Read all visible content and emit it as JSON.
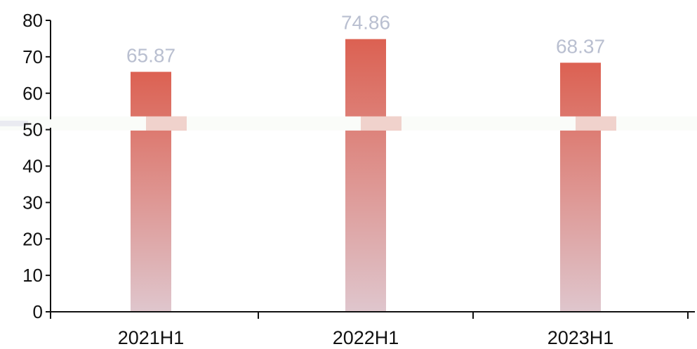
{
  "chart_data": {
    "type": "bar",
    "title": "",
    "xlabel": "",
    "ylabel": "",
    "categories": [
      "2021H1",
      "2022H1",
      "2023H1"
    ],
    "values": [
      65.87,
      74.86,
      68.37
    ],
    "data_labels": [
      "65.87",
      "74.86",
      "68.37"
    ],
    "ylim": [
      0,
      80
    ],
    "yticks": [
      0,
      10,
      20,
      30,
      40,
      50,
      60,
      70,
      80
    ],
    "ytick_labels": [
      "0",
      "10",
      "20",
      "30",
      "40",
      "50",
      "60",
      "70",
      "80"
    ],
    "axis_break_at": 51.5,
    "grid": false,
    "legend": "none",
    "colors": {
      "bar_top": "#dc6152",
      "bar_bottom": "#dfc6cd",
      "data_label": "#b9bfd0",
      "axis": "#111111"
    }
  }
}
